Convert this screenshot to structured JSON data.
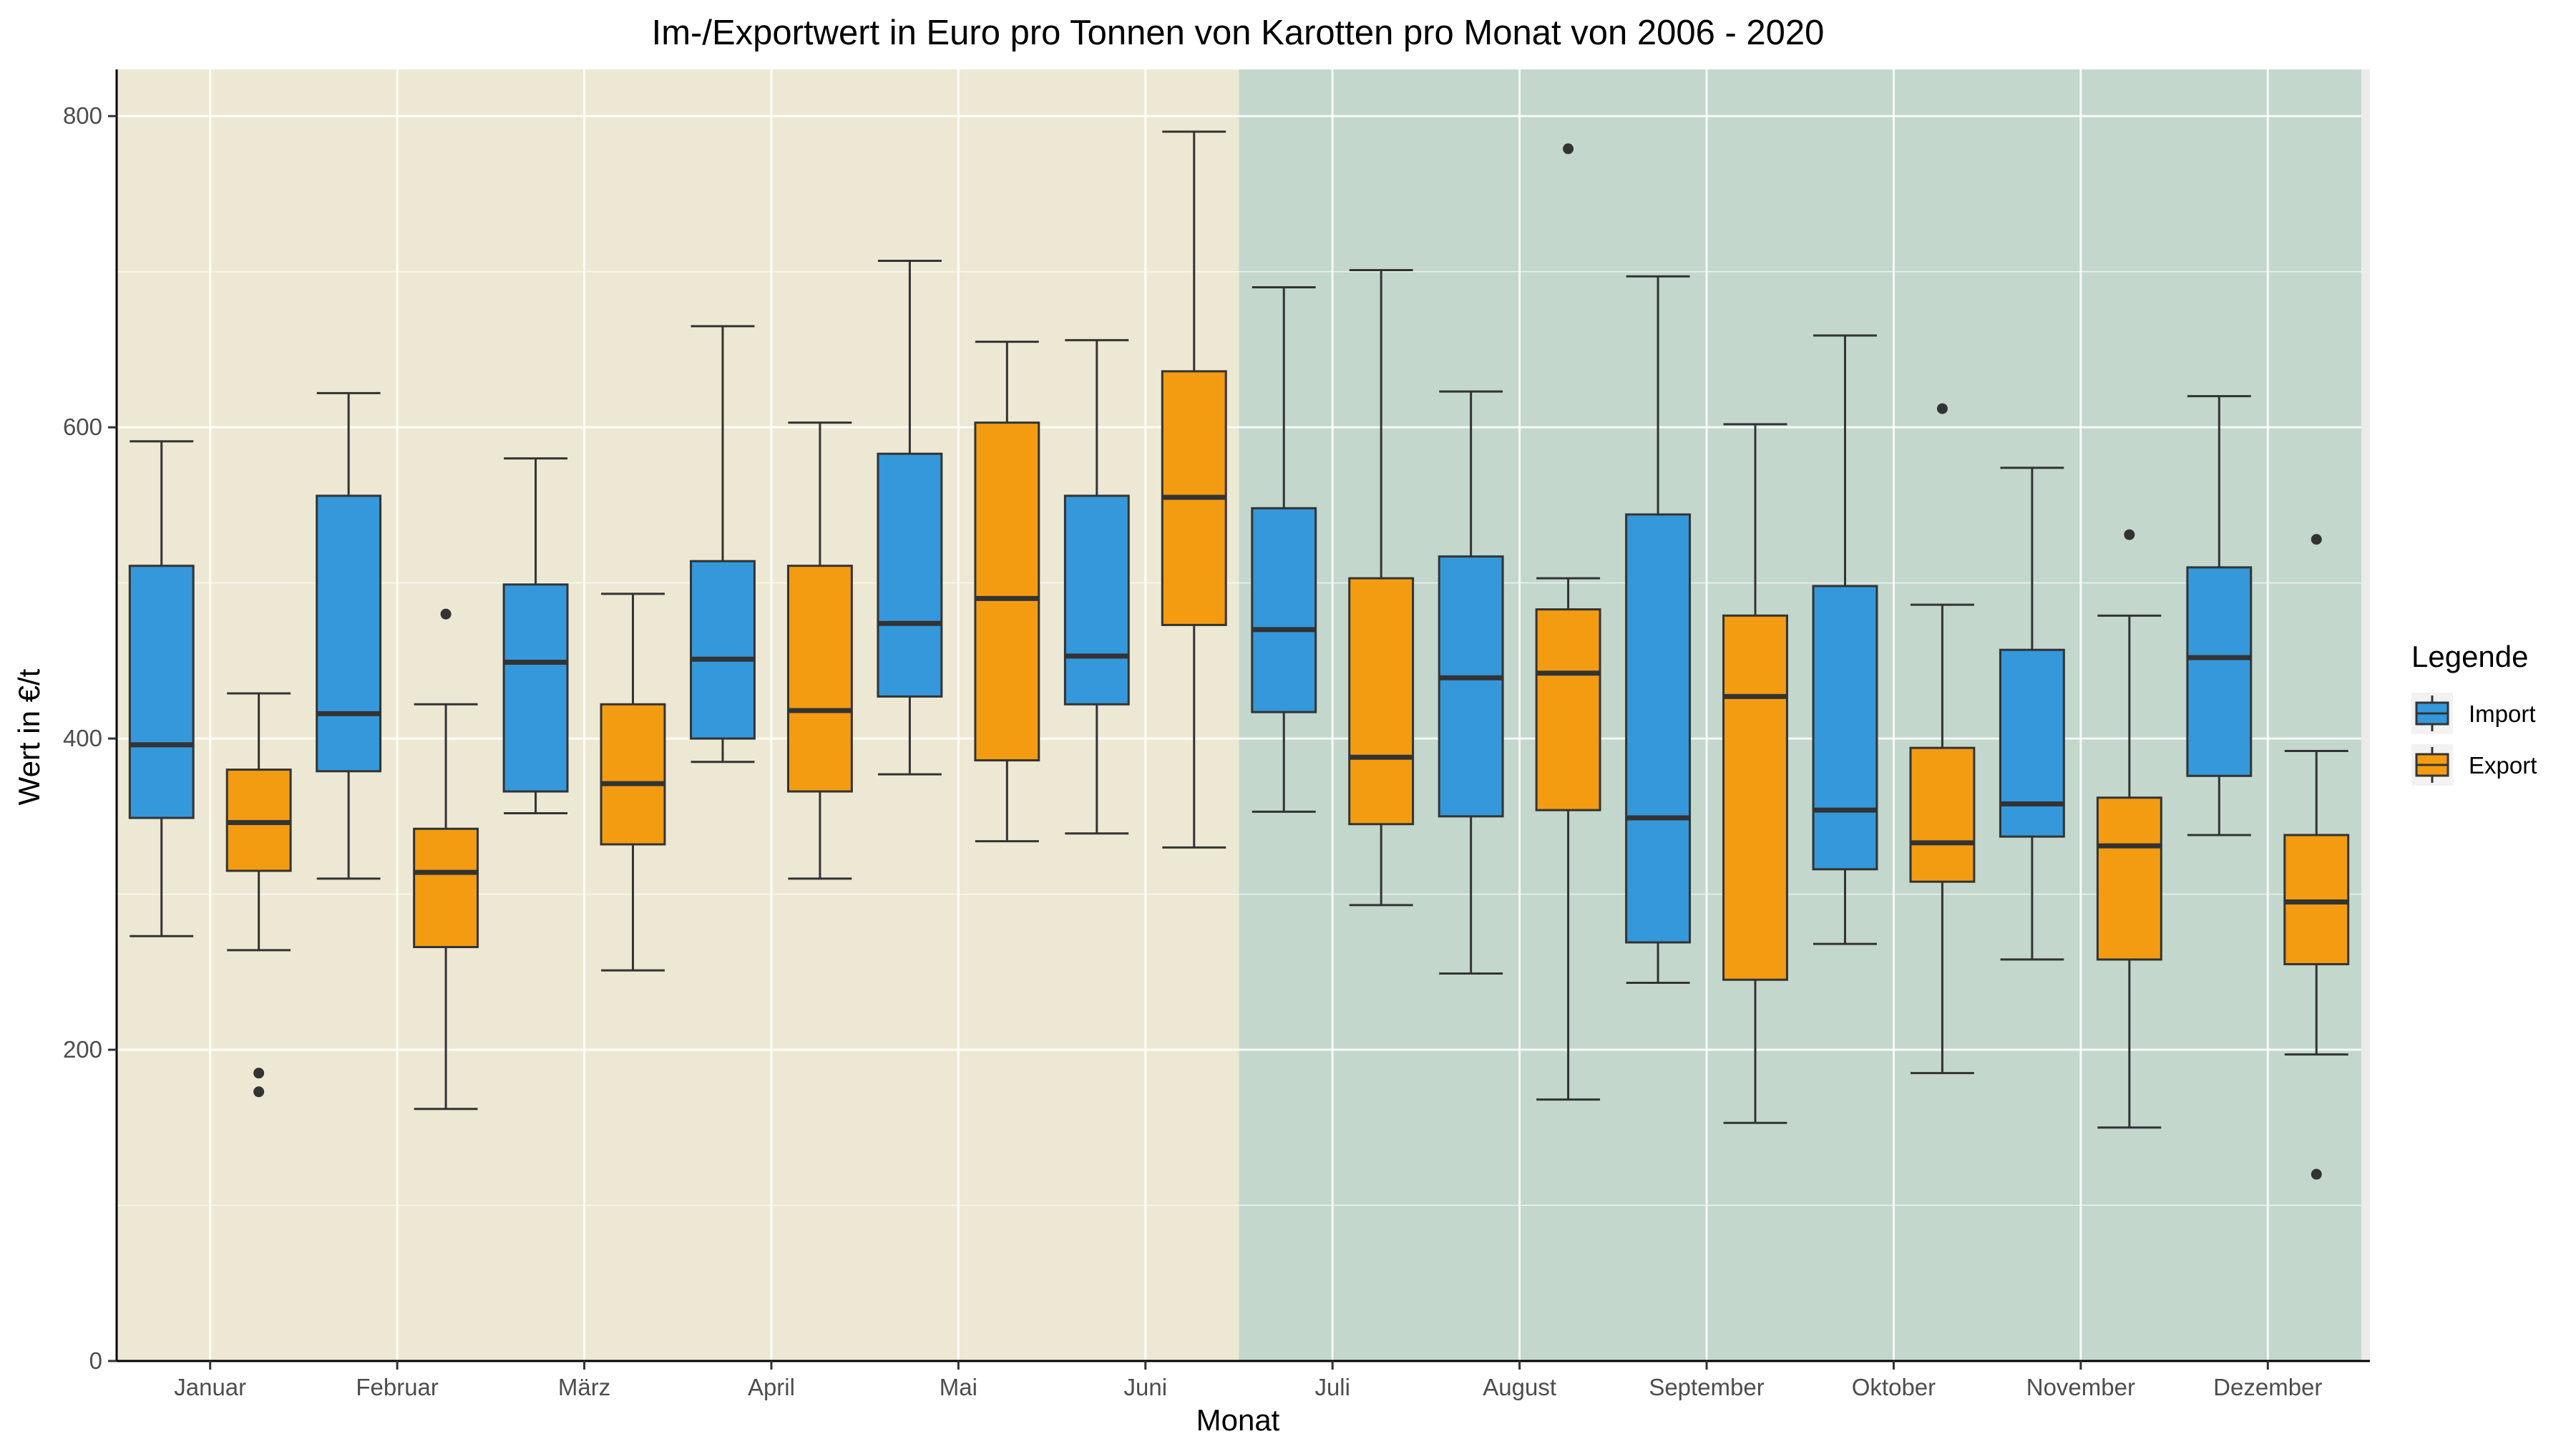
{
  "chart_data": {
    "type": "boxplot",
    "title": "Im-/Exportwert in Euro pro Tonnen von Karotten pro Monat von 2006 - 2020",
    "xlabel": "Monat",
    "ylabel": "Wert in €/t",
    "ylim": [
      0,
      830
    ],
    "yticks": [
      0,
      200,
      400,
      600,
      800
    ],
    "grid": true,
    "legend": {
      "title": "Legende",
      "position": "right",
      "entries": [
        "Import",
        "Export"
      ]
    },
    "colors": {
      "Import": "#3498db",
      "Export": "#f39c12",
      "background_first_half": "#ede8d3",
      "background_second_half": "#c3d7cd"
    },
    "background_regions": [
      {
        "from": "Januar",
        "to": "Juni"
      },
      {
        "from": "Juli",
        "to": "Dezember"
      }
    ],
    "categories": [
      "Januar",
      "Februar",
      "März",
      "April",
      "Mai",
      "Juni",
      "Juli",
      "August",
      "September",
      "Oktober",
      "November",
      "Dezember"
    ],
    "series": [
      {
        "name": "Import",
        "boxes": [
          {
            "whisker_low": 273,
            "q1": 349,
            "median": 396,
            "q3": 511,
            "whisker_high": 591,
            "outliers": []
          },
          {
            "whisker_low": 310,
            "q1": 379,
            "median": 416,
            "q3": 556,
            "whisker_high": 622,
            "outliers": []
          },
          {
            "whisker_low": 352,
            "q1": 366,
            "median": 449,
            "q3": 499,
            "whisker_high": 580,
            "outliers": []
          },
          {
            "whisker_low": 385,
            "q1": 400,
            "median": 451,
            "q3": 514,
            "whisker_high": 665,
            "outliers": []
          },
          {
            "whisker_low": 377,
            "q1": 427,
            "median": 474,
            "q3": 583,
            "whisker_high": 707,
            "outliers": []
          },
          {
            "whisker_low": 339,
            "q1": 422,
            "median": 453,
            "q3": 556,
            "whisker_high": 656,
            "outliers": []
          },
          {
            "whisker_low": 353,
            "q1": 417,
            "median": 470,
            "q3": 548,
            "whisker_high": 690,
            "outliers": []
          },
          {
            "whisker_low": 249,
            "q1": 350,
            "median": 439,
            "q3": 517,
            "whisker_high": 623,
            "outliers": []
          },
          {
            "whisker_low": 243,
            "q1": 269,
            "median": 349,
            "q3": 544,
            "whisker_high": 697,
            "outliers": []
          },
          {
            "whisker_low": 268,
            "q1": 316,
            "median": 354,
            "q3": 498,
            "whisker_high": 659,
            "outliers": []
          },
          {
            "whisker_low": 258,
            "q1": 337,
            "median": 358,
            "q3": 457,
            "whisker_high": 574,
            "outliers": []
          },
          {
            "whisker_low": 338,
            "q1": 376,
            "median": 452,
            "q3": 510,
            "whisker_high": 620,
            "outliers": []
          }
        ]
      },
      {
        "name": "Export",
        "boxes": [
          {
            "whisker_low": 264,
            "q1": 315,
            "median": 346,
            "q3": 380,
            "whisker_high": 429,
            "outliers": [
              185,
              173
            ]
          },
          {
            "whisker_low": 162,
            "q1": 266,
            "median": 314,
            "q3": 342,
            "whisker_high": 422,
            "outliers": [
              480
            ]
          },
          {
            "whisker_low": 251,
            "q1": 332,
            "median": 371,
            "q3": 422,
            "whisker_high": 493,
            "outliers": []
          },
          {
            "whisker_low": 310,
            "q1": 366,
            "median": 418,
            "q3": 511,
            "whisker_high": 603,
            "outliers": []
          },
          {
            "whisker_low": 334,
            "q1": 386,
            "median": 490,
            "q3": 603,
            "whisker_high": 655,
            "outliers": []
          },
          {
            "whisker_low": 330,
            "q1": 473,
            "median": 555,
            "q3": 636,
            "whisker_high": 790,
            "outliers": []
          },
          {
            "whisker_low": 293,
            "q1": 345,
            "median": 388,
            "q3": 503,
            "whisker_high": 701,
            "outliers": []
          },
          {
            "whisker_low": 168,
            "q1": 354,
            "median": 442,
            "q3": 483,
            "whisker_high": 503,
            "outliers": [
              779
            ]
          },
          {
            "whisker_low": 153,
            "q1": 245,
            "median": 427,
            "q3": 479,
            "whisker_high": 602,
            "outliers": []
          },
          {
            "whisker_low": 185,
            "q1": 308,
            "median": 333,
            "q3": 394,
            "whisker_high": 486,
            "outliers": [
              612
            ]
          },
          {
            "whisker_low": 150,
            "q1": 258,
            "median": 331,
            "q3": 362,
            "whisker_high": 479,
            "outliers": [
              531
            ]
          },
          {
            "whisker_low": 197,
            "q1": 255,
            "median": 295,
            "q3": 338,
            "whisker_high": 392,
            "outliers": [
              528,
              120
            ]
          }
        ]
      }
    ]
  }
}
